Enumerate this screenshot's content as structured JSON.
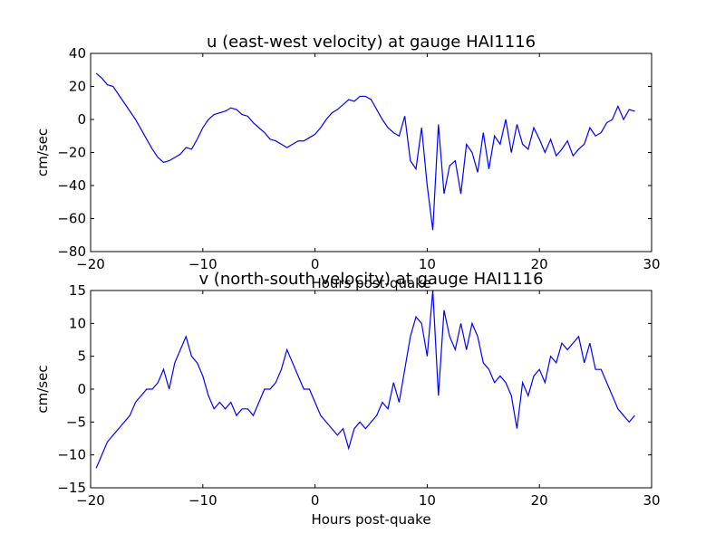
{
  "chart_data": [
    {
      "type": "line",
      "title": "u (east-west velocity) at gauge HAI1116",
      "xlabel": "Hours post-quake",
      "ylabel": "cm/sec",
      "color": "#0000ff",
      "x": [
        -19.5,
        -19,
        -18.5,
        -18,
        -17.5,
        -17,
        -16.5,
        -16,
        -15.5,
        -15,
        -14.5,
        -14,
        -13.5,
        -13,
        -12.5,
        -12,
        -11.5,
        -11,
        -10.5,
        -10,
        -9.5,
        -9,
        -8.5,
        -8,
        -7.5,
        -7,
        -6.5,
        -6,
        -5.5,
        -5,
        -4.5,
        -4,
        -3.5,
        -3,
        -2.5,
        -2,
        -1.5,
        -1,
        -0.5,
        0,
        0.5,
        1,
        1.5,
        2,
        2.5,
        3,
        3.5,
        4,
        4.5,
        5,
        5.5,
        6,
        6.5,
        7,
        7.5,
        8,
        8.5,
        9,
        9.5,
        10,
        10.5,
        11,
        11.5,
        12,
        12.5,
        13,
        13.5,
        14,
        14.5,
        15,
        15.5,
        16,
        16.5,
        17,
        17.5,
        18,
        18.5,
        19,
        19.5,
        20,
        20.5,
        21,
        21.5,
        22,
        22.5,
        23,
        23.5,
        24,
        24.5,
        25,
        25.5,
        26,
        26.5,
        27,
        27.5,
        28,
        28.5
      ],
      "values": [
        28,
        25,
        21,
        20,
        15,
        10,
        5,
        0,
        -6,
        -12,
        -18,
        -23,
        -26,
        -25,
        -23,
        -21,
        -17,
        -18,
        -12,
        -5,
        0,
        3,
        4,
        5,
        7,
        6,
        3,
        2,
        -2,
        -5,
        -8,
        -12,
        -13,
        -15,
        -17,
        -15,
        -13,
        -13,
        -11,
        -9,
        -5,
        0,
        4,
        6,
        9,
        12,
        11,
        14,
        14,
        12,
        6,
        0,
        -5,
        -8,
        -10,
        2,
        -25,
        -30,
        -5,
        -40,
        -67,
        -3,
        -45,
        -28,
        -25,
        -45,
        -15,
        -20,
        -32,
        -8,
        -30,
        -10,
        -15,
        0,
        -20,
        -3,
        -15,
        -18,
        -5,
        -12,
        -20,
        -12,
        -22,
        -18,
        -13,
        -22,
        -18,
        -15,
        -5,
        -10,
        -8,
        -2,
        0,
        8,
        0,
        6,
        5
      ],
      "xlim": [
        -20,
        30
      ],
      "ylim": [
        -80,
        40
      ],
      "xticks": [
        {
          "value": -20,
          "label": "−20"
        },
        {
          "value": -10,
          "label": "−10"
        },
        0,
        10,
        20,
        30
      ],
      "yticks": [
        {
          "value": -80,
          "label": "−80"
        },
        {
          "value": -60,
          "label": "−60"
        },
        {
          "value": -40,
          "label": "−40"
        },
        {
          "value": -20,
          "label": "−20"
        },
        0,
        20,
        40
      ]
    },
    {
      "type": "line",
      "title": "v (north-south velocity) at gauge HAI1116",
      "xlabel": "Hours post-quake",
      "ylabel": "cm/sec",
      "color": "#0000ff",
      "x": [
        -19.5,
        -19,
        -18.5,
        -18,
        -17.5,
        -17,
        -16.5,
        -16,
        -15.5,
        -15,
        -14.5,
        -14,
        -13.5,
        -13,
        -12.5,
        -12,
        -11.5,
        -11,
        -10.5,
        -10,
        -9.5,
        -9,
        -8.5,
        -8,
        -7.5,
        -7,
        -6.5,
        -6,
        -5.5,
        -5,
        -4.5,
        -4,
        -3.5,
        -3,
        -2.5,
        -2,
        -1.5,
        -1,
        -0.5,
        0,
        0.5,
        1,
        1.5,
        2,
        2.5,
        3,
        3.5,
        4,
        4.5,
        5,
        5.5,
        6,
        6.5,
        7,
        7.5,
        8,
        8.5,
        9,
        9.5,
        10,
        10.5,
        11,
        11.5,
        12,
        12.5,
        13,
        13.5,
        14,
        14.5,
        15,
        15.5,
        16,
        16.5,
        17,
        17.5,
        18,
        18.5,
        19,
        19.5,
        20,
        20.5,
        21,
        21.5,
        22,
        22.5,
        23,
        23.5,
        24,
        24.5,
        25,
        25.5,
        26,
        26.5,
        27,
        27.5,
        28,
        28.5
      ],
      "values": [
        -12,
        -10,
        -8,
        -7,
        -6,
        -5,
        -4,
        -2,
        -1,
        0,
        0,
        1,
        3,
        0,
        4,
        6,
        8,
        5,
        4,
        2,
        -1,
        -3,
        -2,
        -3,
        -2,
        -4,
        -3,
        -3,
        -4,
        -2,
        0,
        0,
        1,
        3,
        6,
        4,
        2,
        0,
        0,
        -2,
        -4,
        -5,
        -6,
        -7,
        -6,
        -9,
        -6,
        -5,
        -6,
        -5,
        -4,
        -2,
        -3,
        1,
        -2,
        3,
        8,
        11,
        10,
        5,
        15,
        -1,
        12,
        8,
        6,
        10,
        6,
        10,
        8,
        4,
        3,
        1,
        2,
        1,
        -1,
        -6,
        1,
        -1,
        2,
        3,
        1,
        5,
        4,
        7,
        6,
        7,
        8,
        4,
        7,
        3,
        3,
        1,
        -1,
        -3,
        -4,
        -5,
        -4
      ],
      "xlim": [
        -20,
        30
      ],
      "ylim": [
        -15,
        15
      ],
      "xticks": [
        {
          "value": -20,
          "label": "−20"
        },
        {
          "value": -10,
          "label": "−10"
        },
        0,
        10,
        20,
        30
      ],
      "yticks": [
        {
          "value": -15,
          "label": "−15"
        },
        {
          "value": -10,
          "label": "−10"
        },
        {
          "value": -5,
          "label": "−5"
        },
        0,
        5,
        10,
        15
      ]
    }
  ]
}
